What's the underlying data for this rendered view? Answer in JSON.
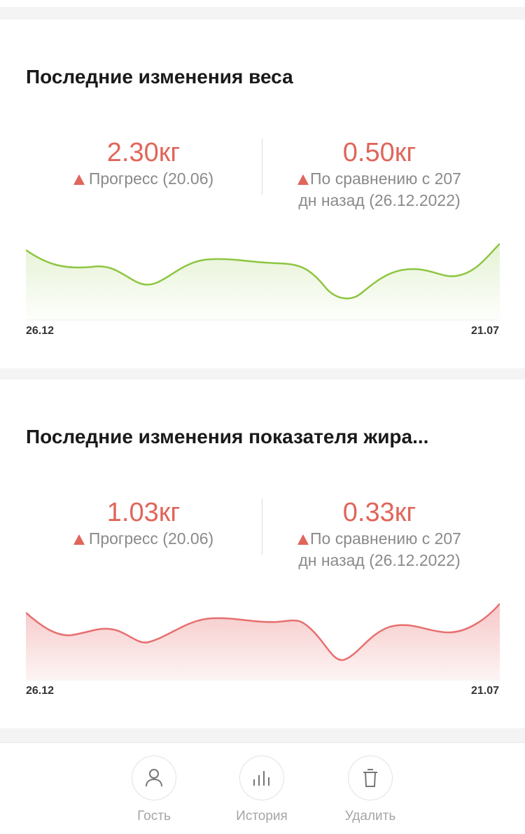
{
  "colors": {
    "value_red": "#e0655a",
    "weight_line": "#8dc641",
    "fat_line": "#e86f6f"
  },
  "weight_card": {
    "title": "Последние изменения веса",
    "left_value": "2.30кг",
    "left_caption": "Прогресс (20.06)",
    "right_value": "0.50кг",
    "right_caption_line1": "По сравнению с 207",
    "right_caption_line2": "дн назад (26.12.2022)",
    "x_start": "26.12",
    "x_end": "21.07"
  },
  "fat_card": {
    "title": "Последние изменения показателя жира...",
    "left_value": "1.03кг",
    "left_caption": "Прогресс (20.06)",
    "right_value": "0.33кг",
    "right_caption_line1": "По сравнению с 207",
    "right_caption_line2": "дн назад (26.12.2022)",
    "x_start": "26.12",
    "x_end": "21.07"
  },
  "tabbar": {
    "items": [
      {
        "label": "Гость",
        "icon": "person-icon"
      },
      {
        "label": "История",
        "icon": "bar-chart-icon"
      },
      {
        "label": "Удалить",
        "icon": "trash-icon"
      }
    ]
  }
}
